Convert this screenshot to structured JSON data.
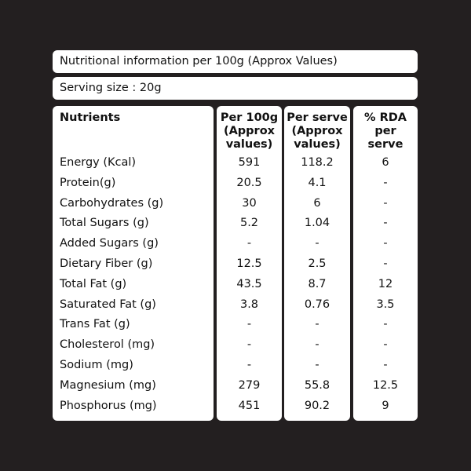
{
  "title": "Nutritional information per 100g (Approx Values)",
  "serving": "Serving size : 20g",
  "headers": {
    "nutrients": [
      "Nutrients"
    ],
    "per100": [
      "Per 100g",
      "(Approx",
      "values)"
    ],
    "perserve": [
      "Per serve",
      "(Approx",
      "values)"
    ],
    "rda": [
      "% RDA",
      "per",
      "serve"
    ]
  },
  "rows": [
    {
      "name": "Energy (Kcal)",
      "per100": "591",
      "perserve": "118.2",
      "rda": "6"
    },
    {
      "name": "Protein(g)",
      "per100": "20.5",
      "perserve": "4.1",
      "rda": "-"
    },
    {
      "name": "Carbohydrates (g)",
      "per100": "30",
      "perserve": "6",
      "rda": "-"
    },
    {
      "name": "Total Sugars (g)",
      "per100": "5.2",
      "perserve": "1.04",
      "rda": "-"
    },
    {
      "name": "Added Sugars (g)",
      "per100": "-",
      "perserve": "-",
      "rda": "-"
    },
    {
      "name": "Dietary Fiber (g)",
      "per100": "12.5",
      "perserve": "2.5",
      "rda": "-"
    },
    {
      "name": "Total Fat (g)",
      "per100": "43.5",
      "perserve": "8.7",
      "rda": "12"
    },
    {
      "name": "Saturated Fat (g)",
      "per100": "3.8",
      "perserve": "0.76",
      "rda": "3.5"
    },
    {
      "name": "Trans Fat (g)",
      "per100": "-",
      "perserve": "-",
      "rda": "-"
    },
    {
      "name": "Cholesterol (mg)",
      "per100": "-",
      "perserve": "-",
      "rda": "-"
    },
    {
      "name": "Sodium (mg)",
      "per100": "-",
      "perserve": "-",
      "rda": "-"
    },
    {
      "name": "Magnesium (mg)",
      "per100": "279",
      "perserve": "55.8",
      "rda": "12.5"
    },
    {
      "name": "Phosphorus (mg)",
      "per100": "451",
      "perserve": "90.2",
      "rda": "9"
    }
  ],
  "colors": {
    "background": "#231f20",
    "panel": "#ffffff",
    "text": "#111111"
  }
}
